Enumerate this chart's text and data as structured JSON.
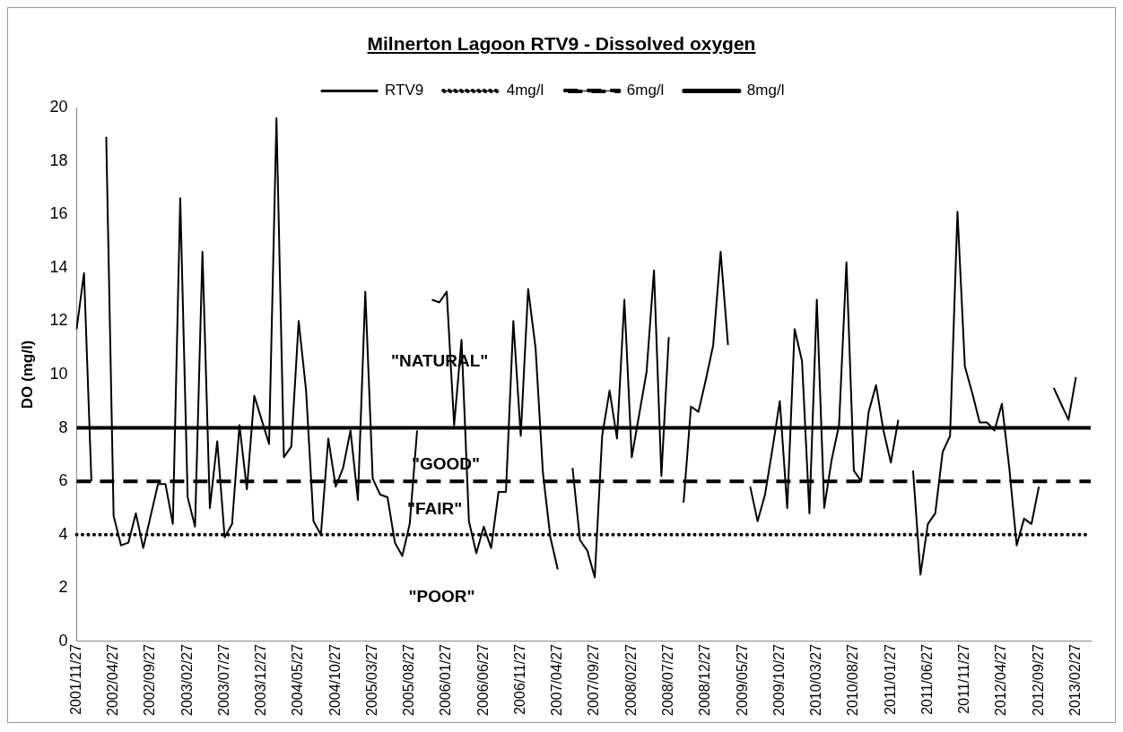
{
  "chart_data": {
    "type": "line",
    "title": "Milnerton Lagoon RTV9 - Dissolved oxygen",
    "ylabel": "DO (mg/l)",
    "categories": [
      "2001/11/27",
      null,
      null,
      null,
      null,
      "2002/04/27",
      null,
      null,
      null,
      null,
      "2002/09/27",
      null,
      null,
      null,
      null,
      "2003/02/27",
      null,
      null,
      null,
      null,
      "2003/07/27",
      null,
      null,
      null,
      null,
      "2003/12/27",
      null,
      null,
      null,
      null,
      "2004/05/27",
      null,
      null,
      null,
      null,
      "2004/10/27",
      null,
      null,
      null,
      null,
      "2005/03/27",
      null,
      null,
      null,
      null,
      "2005/08/27",
      null,
      null,
      null,
      null,
      "2006/01/27",
      null,
      null,
      null,
      null,
      "2006/06/27",
      null,
      null,
      null,
      null,
      "2006/11/27",
      null,
      null,
      null,
      null,
      "2007/04/27",
      null,
      null,
      null,
      null,
      "2007/09/27",
      null,
      null,
      null,
      null,
      "2008/02/27",
      null,
      null,
      null,
      null,
      "2008/07/27",
      null,
      null,
      null,
      null,
      "2008/12/27",
      null,
      null,
      null,
      null,
      "2009/05/27",
      null,
      null,
      null,
      null,
      "2009/10/27",
      null,
      null,
      null,
      null,
      "2010/03/27",
      null,
      null,
      null,
      null,
      "2010/08/27",
      null,
      null,
      null,
      null,
      "2011/01/27",
      null,
      null,
      null,
      null,
      "2011/06/27",
      null,
      null,
      null,
      null,
      "2011/11/27",
      null,
      null,
      null,
      null,
      "2012/04/27",
      null,
      null,
      null,
      null,
      "2012/09/27",
      null,
      null,
      null,
      null,
      "2013/02/27",
      null,
      null
    ],
    "series": [
      {
        "name": "RTV9",
        "color": "#000000",
        "line_style": "solid",
        "values": [
          11.7,
          13.8,
          6.0,
          null,
          18.9,
          4.7,
          3.6,
          3.7,
          4.8,
          3.5,
          4.7,
          5.9,
          5.9,
          4.4,
          16.6,
          5.4,
          4.3,
          14.6,
          5.0,
          7.5,
          3.9,
          4.4,
          8.1,
          5.7,
          9.2,
          8.3,
          7.4,
          19.6,
          6.9,
          7.3,
          12.0,
          9.4,
          4.5,
          4.0,
          7.6,
          5.8,
          6.5,
          7.9,
          5.3,
          13.1,
          6.1,
          5.5,
          5.4,
          3.7,
          3.2,
          4.4,
          7.9,
          null,
          12.8,
          12.7,
          13.1,
          8.1,
          11.3,
          4.5,
          3.3,
          4.3,
          3.5,
          5.6,
          5.6,
          12.0,
          7.7,
          13.2,
          11.0,
          6.3,
          3.9,
          2.7,
          null,
          6.5,
          3.8,
          3.4,
          2.4,
          7.7,
          9.4,
          7.6,
          12.8,
          6.9,
          8.5,
          10.1,
          13.9,
          6.2,
          11.4,
          null,
          5.2,
          8.8,
          8.6,
          9.8,
          11.1,
          14.6,
          11.1,
          null,
          null,
          5.8,
          4.5,
          5.5,
          7.2,
          9.0,
          5.0,
          11.7,
          10.5,
          4.8,
          12.8,
          5.0,
          6.8,
          8.1,
          14.2,
          6.4,
          6.0,
          8.6,
          9.6,
          7.9,
          6.7,
          8.3,
          null,
          6.4,
          2.5,
          4.4,
          4.8,
          7.1,
          7.7,
          16.1,
          10.3,
          9.3,
          8.2,
          8.2,
          7.9,
          8.9,
          6.5,
          3.6,
          4.6,
          4.4,
          5.8,
          null,
          9.5,
          8.9,
          8.3,
          9.9,
          null,
          null
        ]
      },
      {
        "name": "4mg/l",
        "color": "#000000",
        "line_style": "dotted",
        "values": [
          4,
          4,
          4,
          4,
          4,
          4,
          4,
          4,
          4,
          4,
          4,
          4,
          4,
          4,
          4,
          4,
          4,
          4,
          4,
          4,
          4,
          4,
          4,
          4,
          4,
          4,
          4,
          4,
          4,
          4,
          4,
          4,
          4,
          4,
          4,
          4,
          4,
          4,
          4,
          4,
          4,
          4,
          4,
          4,
          4,
          4,
          4,
          4,
          4,
          4,
          4,
          4,
          4,
          4,
          4,
          4,
          4,
          4,
          4,
          4,
          4,
          4,
          4,
          4,
          4,
          4,
          4,
          4,
          4,
          4,
          4,
          4,
          4,
          4,
          4,
          4,
          4,
          4,
          4,
          4,
          4,
          4,
          4,
          4,
          4,
          4,
          4,
          4,
          4,
          4,
          4,
          4,
          4,
          4,
          4,
          4,
          4,
          4,
          4,
          4,
          4,
          4,
          4,
          4,
          4,
          4,
          4,
          4,
          4,
          4,
          4,
          4,
          4,
          4,
          4,
          4,
          4,
          4,
          4,
          4,
          4,
          4,
          4,
          4,
          4,
          4,
          4,
          4,
          4,
          4,
          4,
          4,
          4,
          4,
          4,
          4,
          4,
          4
        ]
      },
      {
        "name": "6mg/l",
        "color": "#000000",
        "line_style": "dashed",
        "values": [
          6,
          6,
          6,
          6,
          6,
          6,
          6,
          6,
          6,
          6,
          6,
          6,
          6,
          6,
          6,
          6,
          6,
          6,
          6,
          6,
          6,
          6,
          6,
          6,
          6,
          6,
          6,
          6,
          6,
          6,
          6,
          6,
          6,
          6,
          6,
          6,
          6,
          6,
          6,
          6,
          6,
          6,
          6,
          6,
          6,
          6,
          6,
          6,
          6,
          6,
          6,
          6,
          6,
          6,
          6,
          6,
          6,
          6,
          6,
          6,
          6,
          6,
          6,
          6,
          6,
          6,
          6,
          6,
          6,
          6,
          6,
          6,
          6,
          6,
          6,
          6,
          6,
          6,
          6,
          6,
          6,
          6,
          6,
          6,
          6,
          6,
          6,
          6,
          6,
          6,
          6,
          6,
          6,
          6,
          6,
          6,
          6,
          6,
          6,
          6,
          6,
          6,
          6,
          6,
          6,
          6,
          6,
          6,
          6,
          6,
          6,
          6,
          6,
          6,
          6,
          6,
          6,
          6,
          6,
          6,
          6,
          6,
          6,
          6,
          6,
          6,
          6,
          6,
          6,
          6,
          6,
          6,
          6,
          6,
          6,
          6,
          6,
          6
        ]
      },
      {
        "name": "8mg/l",
        "color": "#000000",
        "line_style": "solid",
        "values": [
          8,
          8,
          8,
          8,
          8,
          8,
          8,
          8,
          8,
          8,
          8,
          8,
          8,
          8,
          8,
          8,
          8,
          8,
          8,
          8,
          8,
          8,
          8,
          8,
          8,
          8,
          8,
          8,
          8,
          8,
          8,
          8,
          8,
          8,
          8,
          8,
          8,
          8,
          8,
          8,
          8,
          8,
          8,
          8,
          8,
          8,
          8,
          8,
          8,
          8,
          8,
          8,
          8,
          8,
          8,
          8,
          8,
          8,
          8,
          8,
          8,
          8,
          8,
          8,
          8,
          8,
          8,
          8,
          8,
          8,
          8,
          8,
          8,
          8,
          8,
          8,
          8,
          8,
          8,
          8,
          8,
          8,
          8,
          8,
          8,
          8,
          8,
          8,
          8,
          8,
          8,
          8,
          8,
          8,
          8,
          8,
          8,
          8,
          8,
          8,
          8,
          8,
          8,
          8,
          8,
          8,
          8,
          8,
          8,
          8,
          8,
          8,
          8,
          8,
          8,
          8,
          8,
          8,
          8,
          8,
          8,
          8,
          8,
          8,
          8,
          8,
          8,
          8,
          8,
          8,
          8,
          8,
          8,
          8,
          8,
          8,
          8,
          8
        ]
      }
    ],
    "annotations": [
      "\"NATURAL\"",
      "\"GOOD\"",
      "\"FAIR\"",
      "\"POOR\""
    ],
    "ylim": [
      0,
      20
    ],
    "yticks": [
      0,
      2,
      4,
      6,
      8,
      10,
      12,
      14,
      16,
      18,
      20
    ],
    "grid": false,
    "legend": "top",
    "marker": "none"
  }
}
